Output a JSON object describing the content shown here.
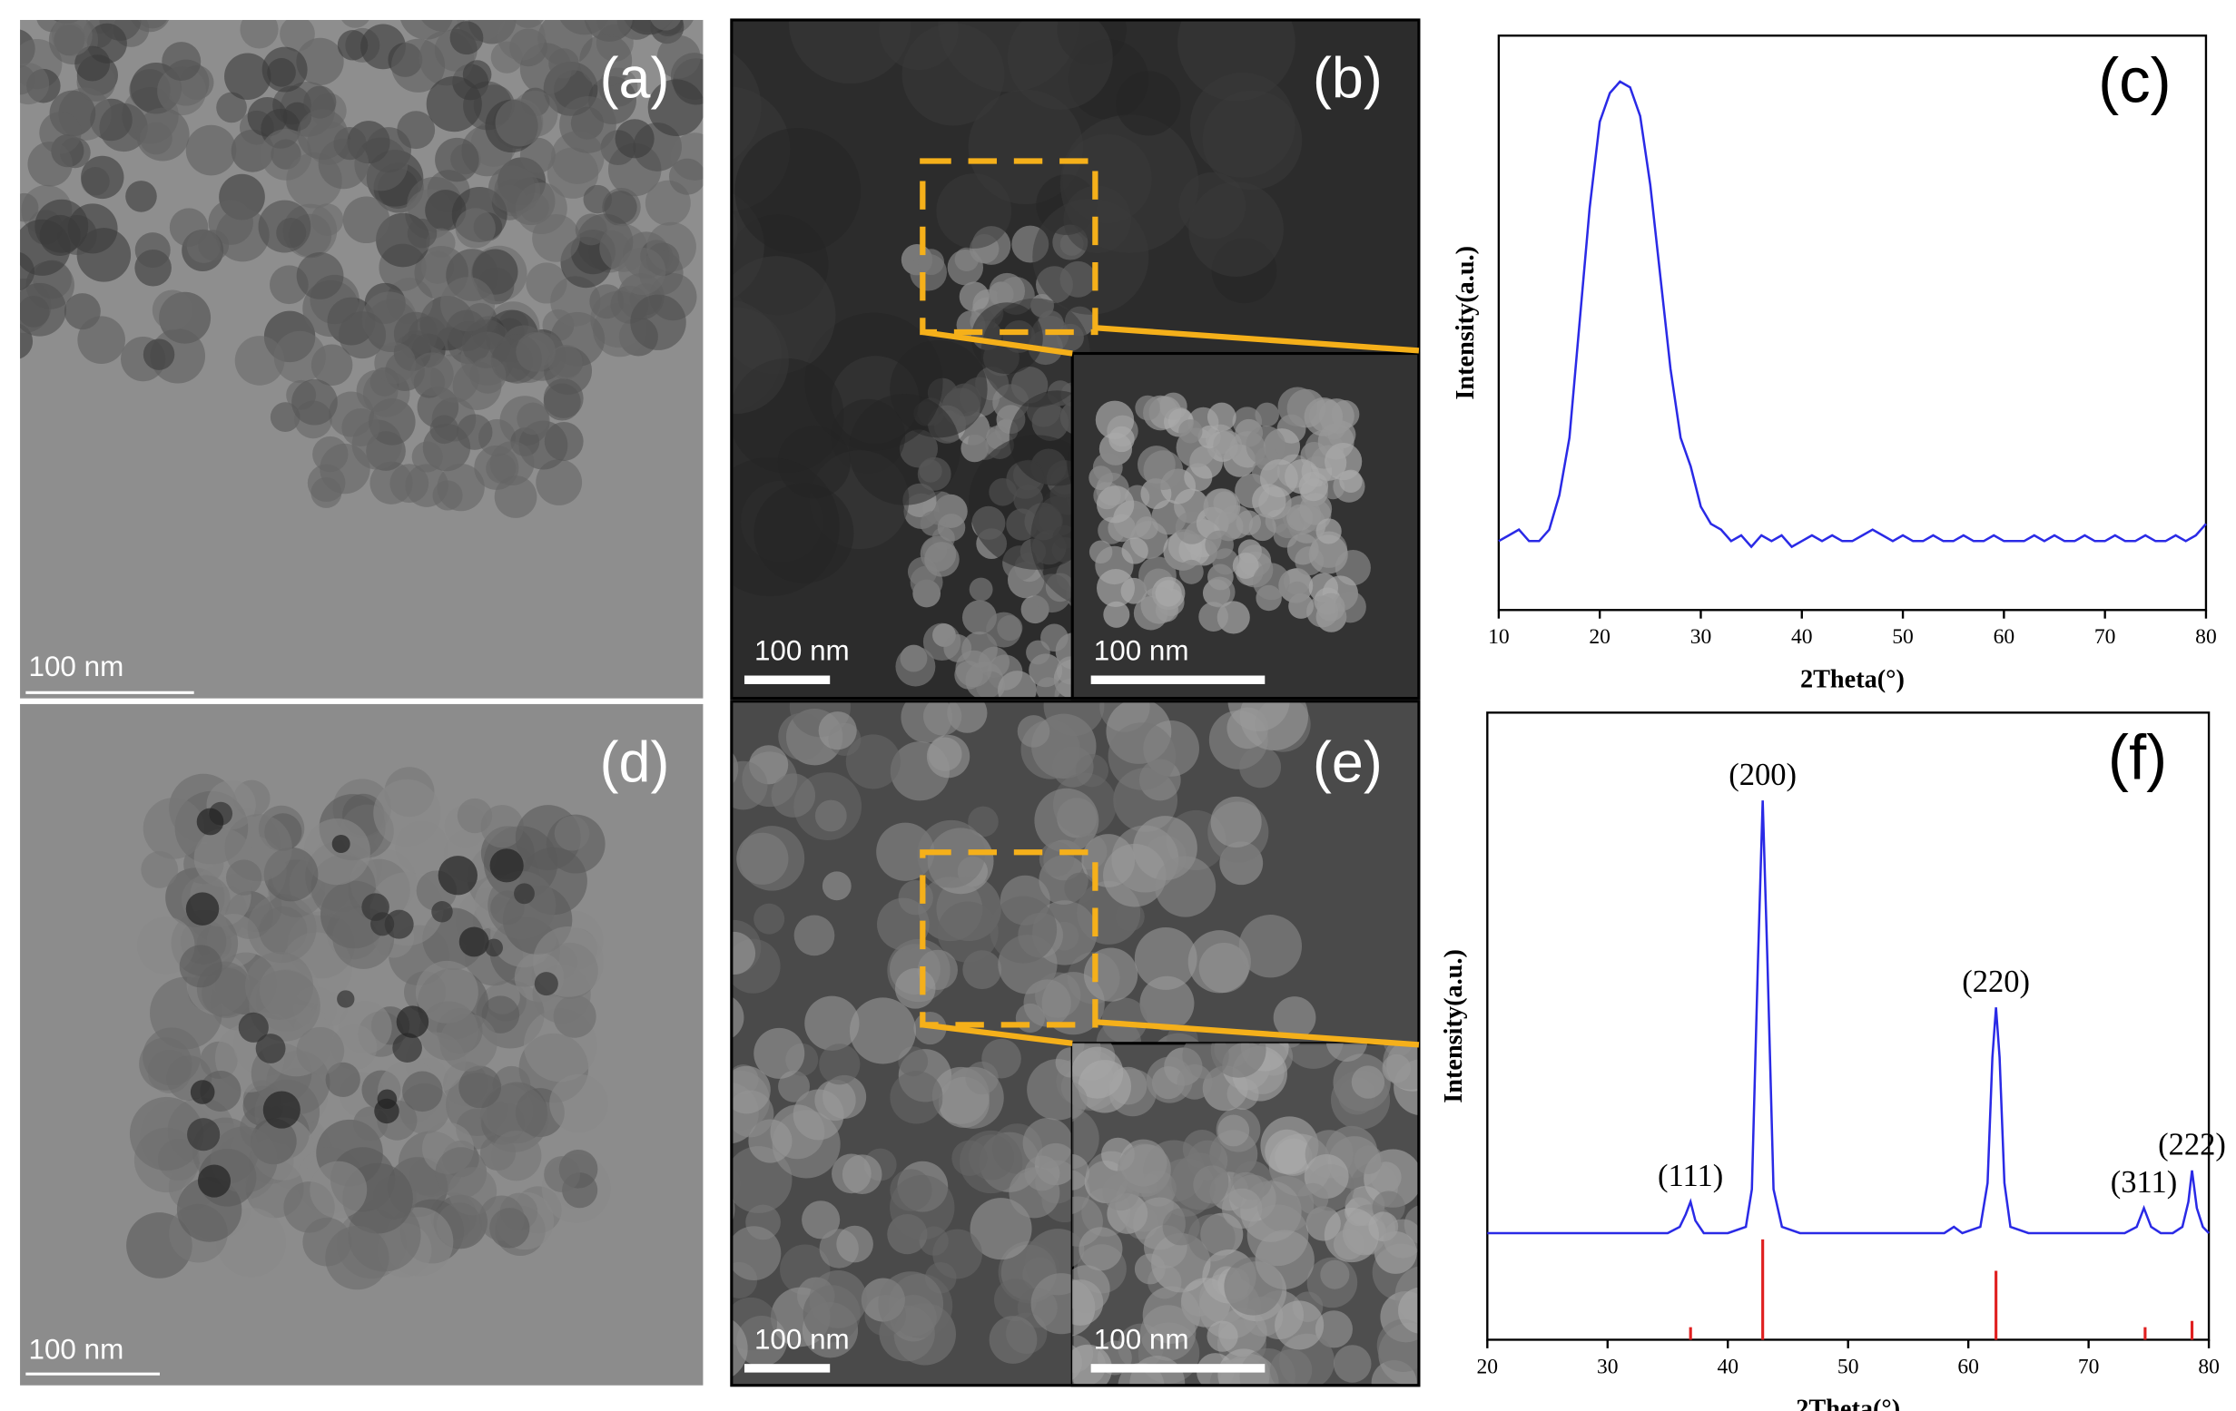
{
  "panels": {
    "a": {
      "label": "(a)",
      "scale": "100 nm"
    },
    "b": {
      "label": "(b)",
      "scale": "100 nm",
      "inset_scale": "100 nm"
    },
    "d": {
      "label": "(d)",
      "scale": "100 nm"
    },
    "e": {
      "label": "(e)",
      "scale": "100 nm",
      "inset_scale": "100 nm"
    }
  },
  "chart_data": [
    {
      "type": "line",
      "label": "(c)",
      "xlabel": "2Theta(°)",
      "ylabel": "Intensity(a.u.)",
      "xlim": [
        10,
        80
      ],
      "xticks": [
        10,
        20,
        30,
        40,
        50,
        60,
        70,
        80
      ],
      "ylim": [
        0,
        100
      ],
      "x": [
        10,
        11,
        12,
        13,
        14,
        15,
        16,
        17,
        18,
        19,
        20,
        21,
        22,
        23,
        24,
        25,
        26,
        27,
        28,
        29,
        30,
        31,
        32,
        33,
        34,
        35,
        36,
        37,
        38,
        39,
        40,
        41,
        42,
        43,
        44,
        45,
        46,
        47,
        48,
        49,
        50,
        51,
        52,
        53,
        54,
        55,
        56,
        57,
        58,
        59,
        60,
        61,
        62,
        63,
        64,
        65,
        66,
        67,
        68,
        69,
        70,
        71,
        72,
        73,
        74,
        75,
        76,
        77,
        78,
        79,
        80
      ],
      "series": [
        {
          "color": "#2a2ae6",
          "values": [
            12,
            13,
            14,
            12,
            12,
            14,
            20,
            30,
            50,
            70,
            85,
            90,
            92,
            91,
            86,
            74,
            58,
            42,
            30,
            25,
            18,
            15,
            14,
            12,
            13,
            11,
            13,
            12,
            13,
            11,
            12,
            13,
            12,
            13,
            12,
            12,
            13,
            14,
            13,
            12,
            13,
            12,
            12,
            13,
            12,
            12,
            13,
            12,
            12,
            13,
            12,
            12,
            12,
            13,
            12,
            13,
            12,
            12,
            13,
            12,
            12,
            13,
            12,
            12,
            13,
            12,
            12,
            13,
            12,
            13,
            15
          ]
        }
      ]
    },
    {
      "type": "line",
      "label": "(f)",
      "xlabel": "2Theta(°)",
      "ylabel": "Intensity(a.u.)",
      "xlim": [
        20,
        80
      ],
      "xticks": [
        20,
        30,
        40,
        50,
        60,
        70,
        80
      ],
      "ylim": [
        0,
        100
      ],
      "x": [
        20,
        25,
        30,
        35,
        36,
        36.5,
        36.9,
        37.3,
        38,
        40,
        41.5,
        42,
        42.5,
        42.9,
        43.3,
        43.8,
        44.5,
        46,
        50,
        55,
        58,
        58.8,
        59.5,
        61,
        61.6,
        62,
        62.3,
        62.6,
        63,
        63.5,
        65,
        70,
        73,
        74,
        74.6,
        75.2,
        76,
        77,
        77.8,
        78.3,
        78.6,
        79,
        79.5,
        80
      ],
      "series": [
        {
          "color": "#2a2ae6",
          "values": [
            17,
            17,
            17,
            17,
            18,
            20,
            22,
            19,
            17,
            17,
            18,
            24,
            60,
            86,
            60,
            24,
            18,
            17,
            17,
            17,
            17,
            18,
            17,
            18,
            25,
            45,
            53,
            45,
            25,
            18,
            17,
            17,
            17,
            18,
            21,
            18,
            17,
            17,
            18,
            22,
            27,
            21,
            18,
            17
          ]
        }
      ],
      "reference": {
        "color": "#e02020",
        "x": [
          36.9,
          42.9,
          62.3,
          74.7,
          78.6
        ],
        "values": [
          2,
          16,
          11,
          2,
          3
        ]
      },
      "annotations": [
        {
          "text": "(111)",
          "x": 36.9
        },
        {
          "text": "(200)",
          "x": 42.9
        },
        {
          "text": "(220)",
          "x": 62.3
        },
        {
          "text": "(311)",
          "x": 74.6
        },
        {
          "text": "(222)",
          "x": 78.6
        }
      ]
    }
  ]
}
